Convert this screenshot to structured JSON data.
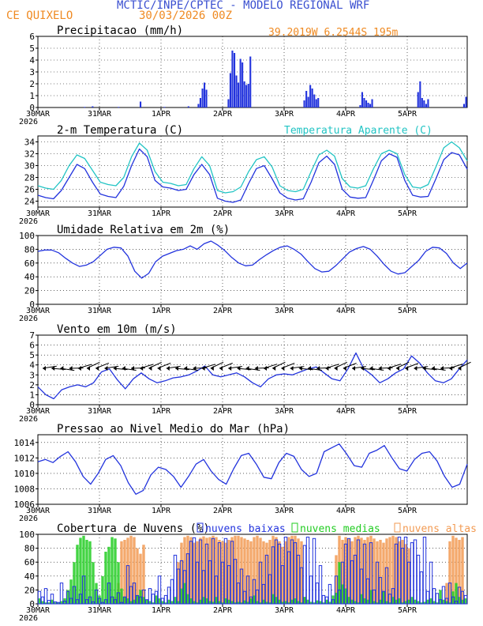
{
  "header": {
    "title": "MCTIC/INPE/CPTEC - MODELO REGIONAL WRF",
    "city": "CE QUIXELO",
    "datetime": "30/03/2026 00Z",
    "location": "39.2019W 6.2544S 195m"
  },
  "colors": {
    "blue": "#2233dd",
    "cyan": "#22c4c4",
    "green": "#22cc22",
    "orange": "#f29a52",
    "title_blue": "#3a4fd0",
    "title_orange": "#ef8a22"
  },
  "time_axis": {
    "labels": [
      "30MAR",
      "31MAR",
      "1APR",
      "2APR",
      "3APR",
      "4APR",
      "5APR"
    ],
    "year": "2026"
  },
  "chart_data": [
    {
      "id": "precip",
      "type": "bar",
      "title": "Precipitacao (mm/h)",
      "ylim": [
        0,
        6
      ],
      "yticks": [
        "0",
        "1",
        "2",
        "3",
        "4",
        "5",
        "6"
      ],
      "series": [
        {
          "name": "precip",
          "values": [
            0,
            0,
            0,
            0,
            0,
            0,
            0,
            0,
            0,
            0,
            0,
            0,
            0,
            0,
            0,
            0,
            0,
            0,
            0,
            0,
            0,
            0,
            0,
            0.05,
            0,
            0,
            0,
            0.1,
            0,
            0,
            0,
            0,
            0,
            0,
            0,
            0,
            0,
            0,
            0,
            0,
            0.05,
            0,
            0,
            0,
            0,
            0,
            0,
            0,
            0,
            0,
            0,
            0.5,
            0,
            0,
            0,
            0,
            0,
            0,
            0,
            0,
            0,
            0,
            0,
            0.05,
            0,
            0,
            0,
            0,
            0,
            0,
            0,
            0,
            0,
            0,
            0,
            0.1,
            0,
            0,
            0,
            0,
            0.3,
            0.8,
            1.6,
            2.1,
            1.5,
            0,
            0,
            0,
            0,
            0,
            0,
            0,
            0,
            0,
            0,
            0.7,
            2.9,
            4.8,
            4.6,
            2.7,
            2.1,
            4.1,
            3.8,
            2.2,
            1.9,
            2.0,
            4.3,
            0,
            0,
            0,
            0,
            0,
            0,
            0,
            0,
            0,
            0,
            0,
            0,
            0,
            0,
            0,
            0,
            0,
            0,
            0,
            0,
            0,
            0,
            0,
            0,
            0,
            0,
            0.6,
            1.4,
            0.9,
            1.9,
            1.6,
            1.1,
            0.7,
            0.8,
            0,
            0,
            0,
            0,
            0,
            0,
            0,
            0,
            0,
            0,
            0,
            0,
            0,
            0,
            0,
            0,
            0,
            0,
            0,
            0,
            0.2,
            1.3,
            0.8,
            0.6,
            0.4,
            0.3,
            0.7,
            0,
            0,
            0,
            0,
            0,
            0,
            0,
            0,
            0,
            0,
            0,
            0,
            0,
            0,
            0,
            0,
            0,
            0,
            0,
            0,
            0,
            0,
            1.3,
            2.2,
            0.8,
            0.6,
            0.3,
            0.7,
            0,
            0,
            0,
            0,
            0,
            0,
            0,
            0,
            0,
            0,
            0,
            0,
            0,
            0,
            0,
            0,
            0,
            0.3,
            0.9
          ]
        }
      ]
    },
    {
      "id": "temp",
      "type": "line",
      "title": "2-m Temperatura (C)",
      "legend": "Temperatura Aparente (C)",
      "ylim": [
        23,
        35
      ],
      "yticks": [
        "24",
        "26",
        "28",
        "30",
        "32",
        "34"
      ],
      "series": [
        {
          "name": "Temperatura 2m",
          "values": [
            25.0,
            24.6,
            24.4,
            25.8,
            28.0,
            30.2,
            29.5,
            27.2,
            25.2,
            24.8,
            24.6,
            26.5,
            30.0,
            32.8,
            31.5,
            27.5,
            26.4,
            26.2,
            25.8,
            26.0,
            28.5,
            30.2,
            28.5,
            24.5,
            24.0,
            23.8,
            24.2,
            27.0,
            29.5,
            30.0,
            27.8,
            25.4,
            24.5,
            24.2,
            24.4,
            27.2,
            30.5,
            31.6,
            30.2,
            26.0,
            24.7,
            24.5,
            24.6,
            27.6,
            30.8,
            32.0,
            31.4,
            27.5,
            25.0,
            24.7,
            24.8,
            27.8,
            31.0,
            32.2,
            31.8,
            29.4
          ]
        },
        {
          "name": "Temperatura Aparente",
          "values": [
            26.6,
            26.2,
            26.0,
            27.5,
            30.0,
            31.8,
            31.2,
            29.2,
            27.2,
            26.8,
            26.6,
            28.0,
            31.5,
            33.8,
            32.6,
            29.0,
            27.2,
            27.0,
            26.6,
            26.8,
            29.5,
            31.5,
            30.0,
            25.8,
            25.4,
            25.6,
            26.4,
            29.0,
            31.0,
            31.5,
            29.8,
            26.6,
            25.8,
            25.6,
            26.0,
            29.0,
            31.8,
            32.6,
            31.6,
            27.8,
            26.4,
            26.2,
            26.6,
            29.5,
            32.0,
            32.6,
            32.0,
            28.5,
            26.4,
            26.2,
            26.8,
            29.8,
            33.0,
            34.0,
            33.0,
            30.8
          ]
        }
      ]
    },
    {
      "id": "rh",
      "type": "line",
      "title": "Umidade Relativa em 2m (%)",
      "ylim": [
        0,
        100
      ],
      "yticks": [
        "0",
        "20",
        "40",
        "60",
        "80",
        "100"
      ],
      "series": [
        {
          "name": "UR",
          "values": [
            77,
            79,
            79,
            75,
            67,
            60,
            55,
            57,
            62,
            71,
            80,
            83,
            82,
            70,
            48,
            38,
            45,
            62,
            70,
            74,
            78,
            80,
            85,
            80,
            88,
            92,
            86,
            78,
            68,
            60,
            56,
            57,
            65,
            72,
            78,
            83,
            85,
            80,
            73,
            62,
            52,
            47,
            48,
            56,
            66,
            76,
            81,
            84,
            80,
            70,
            58,
            48,
            44,
            46,
            55,
            64,
            77,
            83,
            82,
            74,
            60,
            52,
            60
          ]
        }
      ]
    },
    {
      "id": "wind",
      "type": "line",
      "title": "Vento em 10m (m/s)",
      "ylim": [
        0,
        7
      ],
      "yticks": [
        "0",
        "1",
        "2",
        "3",
        "4",
        "5",
        "6",
        "7"
      ],
      "series": [
        {
          "name": "Vento",
          "values": [
            1.8,
            1.0,
            0.6,
            1.5,
            1.8,
            2.0,
            1.8,
            2.2,
            3.3,
            3.6,
            2.5,
            1.6,
            2.6,
            3.2,
            2.6,
            2.2,
            2.4,
            2.7,
            2.8,
            3.0,
            3.4,
            3.9,
            3.0,
            2.8,
            3.0,
            3.2,
            2.8,
            2.2,
            1.8,
            2.6,
            3.0,
            3.1,
            3.0,
            3.3,
            3.6,
            3.8,
            3.2,
            2.6,
            2.4,
            3.6,
            5.2,
            3.6,
            3.0,
            2.2,
            2.6,
            3.2,
            3.6,
            4.9,
            4.2,
            3.2,
            2.4,
            2.2,
            2.6,
            3.6,
            4.5
          ]
        }
      ]
    },
    {
      "id": "pres",
      "type": "line",
      "title": "Pressao ao Nivel Medio do Mar (hPa)",
      "ylim": [
        1006,
        1015
      ],
      "yticks": [
        "1006",
        "1008",
        "1010",
        "1012",
        "1014"
      ],
      "series": [
        {
          "name": "PNMM",
          "values": [
            1011.5,
            1011.8,
            1011.4,
            1012.2,
            1012.8,
            1011.5,
            1009.6,
            1008.6,
            1010.0,
            1011.8,
            1012.3,
            1011.0,
            1008.8,
            1007.3,
            1007.8,
            1009.8,
            1010.8,
            1010.5,
            1009.6,
            1008.2,
            1009.6,
            1011.2,
            1011.8,
            1010.3,
            1009.2,
            1008.6,
            1010.6,
            1012.3,
            1012.6,
            1011.2,
            1009.5,
            1009.3,
            1011.4,
            1012.6,
            1012.2,
            1010.5,
            1009.6,
            1010.0,
            1012.8,
            1013.3,
            1013.8,
            1012.5,
            1011.0,
            1010.8,
            1012.6,
            1013.0,
            1013.6,
            1012.0,
            1010.6,
            1010.3,
            1011.8,
            1012.6,
            1012.8,
            1011.6,
            1009.6,
            1008.2,
            1008.6,
            1011.2
          ]
        }
      ]
    },
    {
      "id": "clouds",
      "type": "bar",
      "title": "Cobertura de Nuvens (%)",
      "legend": [
        "nuvens baixas",
        "nuvens medias",
        "nuvens altas"
      ],
      "ylim": [
        0,
        100
      ],
      "yticks": [
        "0",
        "20",
        "40",
        "60",
        "80",
        "100"
      ],
      "series": [
        {
          "name": "nuvens baixas",
          "values": [
            18,
            10,
            22,
            5,
            14,
            3,
            2,
            30,
            4,
            18,
            8,
            25,
            6,
            14,
            40,
            6,
            10,
            3,
            20,
            8,
            2,
            6,
            30,
            10,
            6,
            16,
            2,
            10,
            55,
            25,
            30,
            12,
            10,
            20,
            6,
            22,
            14,
            18,
            40,
            8,
            12,
            24,
            35,
            70,
            50,
            62,
            48,
            72,
            90,
            95,
            60,
            92,
            48,
            86,
            62,
            94,
            40,
            88,
            60,
            94,
            55,
            90,
            64,
            30,
            50,
            18,
            40,
            10,
            35,
            20,
            60,
            28,
            70,
            42,
            82,
            92,
            86,
            55,
            96,
            75,
            92,
            88,
            70,
            52,
            84,
            96,
            40,
            94,
            30,
            55,
            12,
            10,
            28,
            6,
            40,
            20,
            60,
            86,
            94,
            62,
            70,
            92,
            50,
            86,
            36,
            88,
            20,
            60,
            38,
            18,
            52,
            14,
            22,
            86,
            96,
            80,
            96,
            60,
            88,
            92,
            70,
            46,
            96,
            18,
            60,
            22,
            15,
            6,
            25,
            8,
            30,
            10,
            4,
            24,
            18,
            12
          ]
        },
        {
          "name": "nuvens medias",
          "values": [
            8,
            4,
            2,
            2,
            6,
            2,
            2,
            4,
            8,
            20,
            35,
            60,
            85,
            95,
            98,
            92,
            90,
            60,
            30,
            12,
            40,
            75,
            82,
            96,
            94,
            60,
            22,
            10,
            8,
            4,
            6,
            12,
            20,
            10,
            6,
            4,
            2,
            12,
            8,
            4,
            2,
            6,
            4,
            10,
            4,
            22,
            30,
            14,
            8,
            4,
            2,
            6,
            10,
            8,
            4,
            3,
            10,
            4,
            2,
            8,
            6,
            4,
            2,
            3,
            2,
            5,
            3,
            8,
            12,
            4,
            2,
            6,
            3,
            2,
            14,
            10,
            6,
            3,
            4,
            2,
            6,
            8,
            4,
            2,
            10,
            6,
            3,
            2,
            5,
            4,
            2,
            6,
            3,
            12,
            16,
            60,
            28,
            22,
            10,
            6,
            4,
            2,
            14,
            8,
            6,
            20,
            4,
            2,
            6,
            18,
            4,
            2,
            10,
            6,
            8,
            2,
            4,
            6,
            10,
            6,
            4,
            2,
            3,
            6,
            8,
            4,
            2,
            20,
            6,
            4,
            2,
            18,
            30,
            10,
            6,
            8
          ]
        },
        {
          "name": "nuvens altas",
          "values": [
            0,
            0,
            0,
            0,
            0,
            0,
            0,
            0,
            0,
            0,
            0,
            0,
            0,
            0,
            0,
            0,
            0,
            0,
            0,
            0,
            0,
            0,
            0,
            0,
            10,
            30,
            90,
            92,
            95,
            98,
            96,
            80,
            72,
            85,
            0,
            0,
            0,
            0,
            0,
            0,
            0,
            0,
            0,
            0,
            60,
            88,
            96,
            98,
            96,
            88,
            90,
            95,
            97,
            95,
            96,
            98,
            96,
            92,
            90,
            88,
            92,
            96,
            98,
            98,
            96,
            94,
            92,
            90,
            96,
            98,
            95,
            90,
            88,
            92,
            98,
            96,
            90,
            82,
            90,
            96,
            98,
            98,
            94,
            90,
            10,
            0,
            0,
            0,
            0,
            0,
            0,
            0,
            0,
            0,
            70,
            98,
            92,
            96,
            94,
            90,
            96,
            98,
            95,
            92,
            96,
            98,
            94,
            90,
            92,
            88,
            94,
            96,
            98,
            96,
            90,
            92,
            86,
            80,
            0,
            0,
            0,
            0,
            0,
            0,
            0,
            0,
            0,
            0,
            0,
            30,
            90,
            98,
            95,
            92,
            96
          ]
        }
      ]
    }
  ]
}
